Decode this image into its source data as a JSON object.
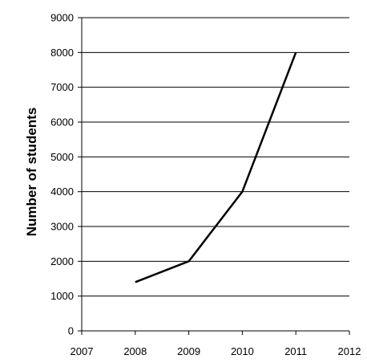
{
  "chart_data": {
    "type": "line",
    "title": "",
    "xlabel": "",
    "ylabel": "Number of students",
    "x": [
      2008,
      2009,
      2010,
      2011
    ],
    "series": [
      {
        "values": [
          1400,
          2000,
          4000,
          8000
        ]
      }
    ],
    "xlim": [
      2007,
      2012
    ],
    "ylim": [
      0,
      9000
    ],
    "x_ticks": [
      "2007",
      "2008",
      "2009",
      "2010",
      "2011",
      "2012"
    ],
    "y_ticks": [
      "0",
      "1000",
      "2000",
      "3000",
      "4000",
      "5000",
      "6000",
      "7000",
      "8000",
      "9000"
    ],
    "grid": "horizontal",
    "legend": "none",
    "line_color": "#000000",
    "grid_color": "#000000"
  }
}
